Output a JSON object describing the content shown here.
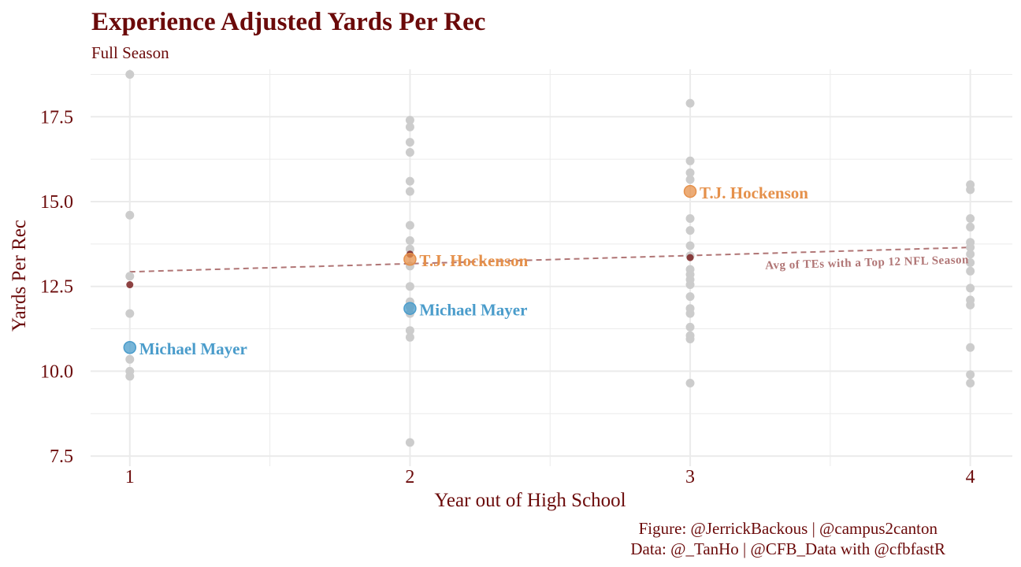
{
  "colors": {
    "text": "#6b0a0a",
    "grid": "#ebebeb",
    "gray_point": "#cccccc",
    "mayer": "#4a9ccb",
    "hockenson": "#e5904a",
    "avg_point": "#7a2222",
    "avg_line": "#b07575"
  },
  "chart_data": {
    "type": "scatter",
    "title": "Experience Adjusted Yards Per Rec",
    "subtitle": "Full Season",
    "xlabel": "Year out of High School",
    "ylabel": "Yards Per Rec",
    "xlim": [
      0.86,
      4.15
    ],
    "ylim": [
      7.2,
      18.9
    ],
    "x_ticks": [
      1,
      2,
      3,
      4
    ],
    "y_ticks": [
      7.5,
      10.0,
      12.5,
      15.0,
      17.5
    ],
    "y_tick_labels": [
      "7.5",
      "10.0",
      "12.5",
      "15.0",
      "17.5"
    ],
    "grid": true,
    "caption": [
      "Figure: @JerrickBackous | @campus2canton",
      "Data: @_TanHo | @CFB_Data with @cfbfastR"
    ],
    "background_points": [
      {
        "x": 1,
        "y": 18.75
      },
      {
        "x": 1,
        "y": 14.6
      },
      {
        "x": 1,
        "y": 12.8
      },
      {
        "x": 1,
        "y": 11.7
      },
      {
        "x": 1,
        "y": 10.35
      },
      {
        "x": 1,
        "y": 10.0
      },
      {
        "x": 1,
        "y": 9.85
      },
      {
        "x": 2,
        "y": 17.4
      },
      {
        "x": 2,
        "y": 17.2
      },
      {
        "x": 2,
        "y": 16.75
      },
      {
        "x": 2,
        "y": 16.45
      },
      {
        "x": 2,
        "y": 15.6
      },
      {
        "x": 2,
        "y": 15.3
      },
      {
        "x": 2,
        "y": 14.3
      },
      {
        "x": 2,
        "y": 13.85
      },
      {
        "x": 2,
        "y": 13.6
      },
      {
        "x": 2,
        "y": 13.1
      },
      {
        "x": 2,
        "y": 12.5
      },
      {
        "x": 2,
        "y": 12.05
      },
      {
        "x": 2,
        "y": 11.9
      },
      {
        "x": 2,
        "y": 11.7
      },
      {
        "x": 2,
        "y": 11.2
      },
      {
        "x": 2,
        "y": 11.0
      },
      {
        "x": 2,
        "y": 7.9
      },
      {
        "x": 3,
        "y": 17.9
      },
      {
        "x": 3,
        "y": 16.2
      },
      {
        "x": 3,
        "y": 15.85
      },
      {
        "x": 3,
        "y": 15.65
      },
      {
        "x": 3,
        "y": 14.5
      },
      {
        "x": 3,
        "y": 14.15
      },
      {
        "x": 3,
        "y": 13.7
      },
      {
        "x": 3,
        "y": 13.4
      },
      {
        "x": 3,
        "y": 13.0
      },
      {
        "x": 3,
        "y": 12.85
      },
      {
        "x": 3,
        "y": 12.7
      },
      {
        "x": 3,
        "y": 12.55
      },
      {
        "x": 3,
        "y": 12.2
      },
      {
        "x": 3,
        "y": 11.85
      },
      {
        "x": 3,
        "y": 11.7
      },
      {
        "x": 3,
        "y": 11.3
      },
      {
        "x": 3,
        "y": 11.05
      },
      {
        "x": 3,
        "y": 10.95
      },
      {
        "x": 3,
        "y": 9.65
      },
      {
        "x": 4,
        "y": 15.5
      },
      {
        "x": 4,
        "y": 15.35
      },
      {
        "x": 4,
        "y": 14.5
      },
      {
        "x": 4,
        "y": 14.25
      },
      {
        "x": 4,
        "y": 13.8
      },
      {
        "x": 4,
        "y": 13.65
      },
      {
        "x": 4,
        "y": 13.45
      },
      {
        "x": 4,
        "y": 13.2
      },
      {
        "x": 4,
        "y": 12.95
      },
      {
        "x": 4,
        "y": 12.45
      },
      {
        "x": 4,
        "y": 12.1
      },
      {
        "x": 4,
        "y": 11.95
      },
      {
        "x": 4,
        "y": 10.7
      },
      {
        "x": 4,
        "y": 9.9
      },
      {
        "x": 4,
        "y": 9.65
      }
    ],
    "series": [
      {
        "name": "Michael Mayer",
        "color": "#4a9ccb",
        "points": [
          {
            "x": 1,
            "y": 10.7
          },
          {
            "x": 2,
            "y": 11.85
          }
        ]
      },
      {
        "name": "T.J. Hockenson",
        "color": "#e5904a",
        "points": [
          {
            "x": 2,
            "y": 13.3
          },
          {
            "x": 3,
            "y": 15.3
          }
        ]
      }
    ],
    "avg_points": [
      {
        "x": 1,
        "y": 12.55
      },
      {
        "x": 2,
        "y": 13.45
      },
      {
        "x": 3,
        "y": 13.35
      }
    ],
    "trend_line": {
      "from": {
        "x": 1,
        "y": 12.93
      },
      "to": {
        "x": 4,
        "y": 13.65
      }
    },
    "trend_label": "Avg of TEs with a Top 12 NFL Season"
  }
}
